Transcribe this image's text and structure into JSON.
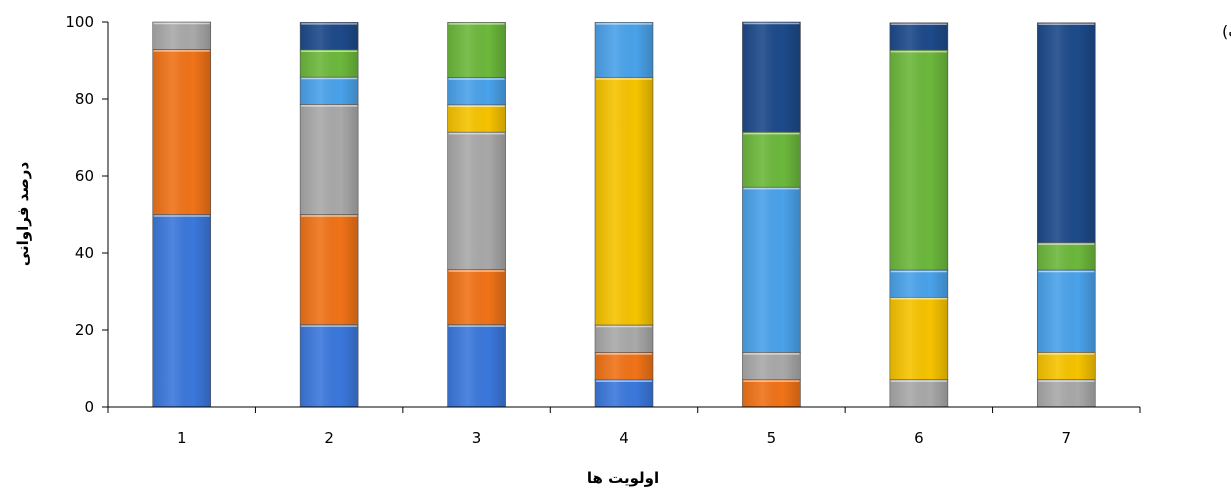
{
  "chart_data": {
    "type": "bar",
    "stacked": true,
    "panel_label": "(ب)",
    "xlabel": "اولویت ها",
    "ylabel": "درصد فراوانی",
    "ylim": [
      0,
      100
    ],
    "yticks": [
      0,
      20,
      40,
      60,
      80,
      100
    ],
    "categories": [
      "1",
      "2",
      "3",
      "4",
      "5",
      "6",
      "7"
    ],
    "grid": false,
    "legend": "none",
    "series": [
      {
        "color": "#3b78dc",
        "values": [
          50,
          21.4,
          21.4,
          7.1,
          0,
          0,
          0
        ]
      },
      {
        "color": "#f07318",
        "values": [
          42.9,
          28.6,
          14.3,
          7.1,
          7.1,
          0,
          0
        ]
      },
      {
        "color": "#a9a9a9",
        "values": [
          7.1,
          28.6,
          35.7,
          7.1,
          7.1,
          7.1,
          7.1
        ]
      },
      {
        "color": "#f6c300",
        "values": [
          0,
          0,
          7.1,
          64.3,
          0,
          21.4,
          7.1
        ]
      },
      {
        "color": "#4aa2ea",
        "values": [
          0,
          7.1,
          7.1,
          14.3,
          42.9,
          7.1,
          21.4
        ]
      },
      {
        "color": "#6cb83c",
        "values": [
          0,
          7.1,
          14.3,
          0,
          14.3,
          57.1,
          7.1
        ]
      },
      {
        "color": "#1d4a8a",
        "values": [
          0,
          7.1,
          0,
          0,
          28.6,
          7.1,
          57.1
        ]
      }
    ]
  }
}
